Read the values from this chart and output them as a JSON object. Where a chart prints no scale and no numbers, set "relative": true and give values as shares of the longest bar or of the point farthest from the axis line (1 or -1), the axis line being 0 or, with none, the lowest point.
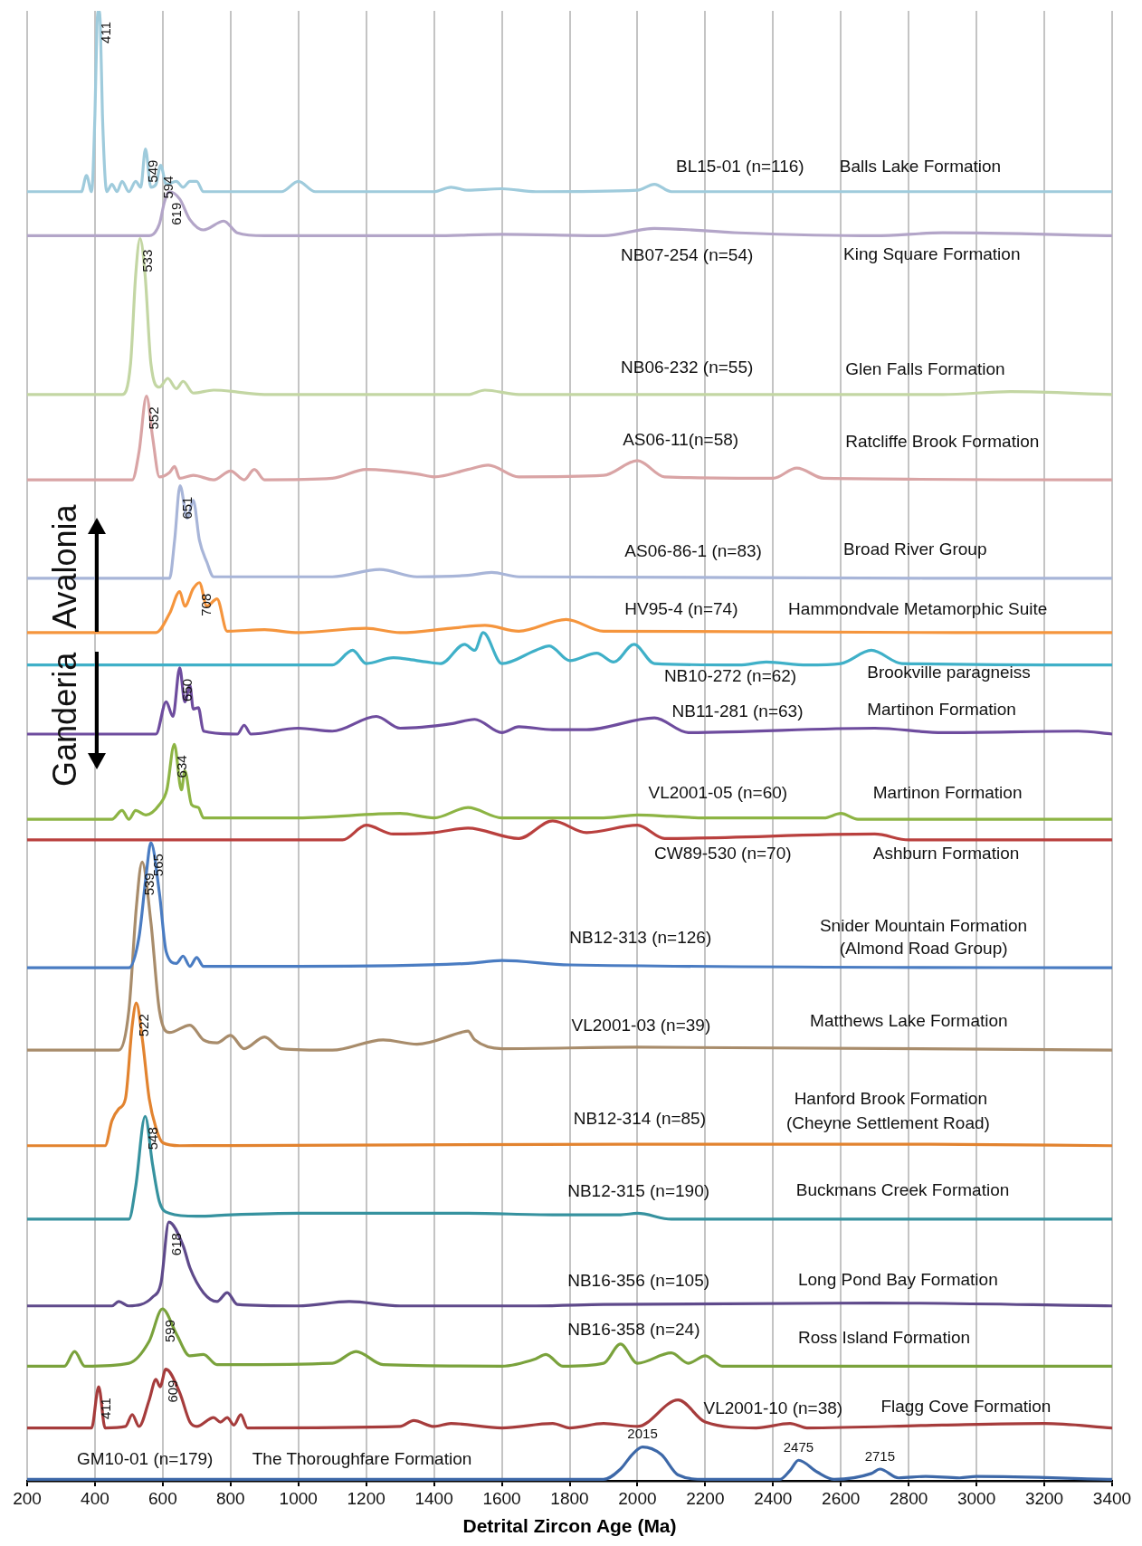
{
  "chart_data": {
    "type": "line",
    "relative": true,
    "xlabel": "Detrital Zircon Age (Ma)",
    "xlim": [
      200,
      3400
    ],
    "xticks": [
      200,
      400,
      600,
      800,
      1000,
      1200,
      1400,
      1600,
      1800,
      2000,
      2200,
      2400,
      2600,
      2800,
      3000,
      3200,
      3400
    ],
    "grid": "x",
    "series": [
      {
        "color": "#9fcbdc",
        "x": [
          200,
          360,
          375,
          390,
          400,
          406,
          411,
          416,
          422,
          435,
          450,
          465,
          480,
          500,
          520,
          535,
          549,
          565,
          580,
          594,
          610,
          640,
          660,
          680,
          700,
          720,
          950,
          1000,
          1050,
          1400,
          1450,
          1500,
          1600,
          1700,
          2000,
          2050,
          2100,
          3400
        ],
        "values": [
          0.877,
          0.877,
          0.888,
          0.877,
          0.93,
          0.99,
          1.0,
          0.99,
          0.93,
          0.877,
          0.882,
          0.877,
          0.884,
          0.877,
          0.884,
          0.88,
          0.906,
          0.88,
          0.882,
          0.895,
          0.882,
          0.884,
          0.88,
          0.884,
          0.884,
          0.877,
          0.877,
          0.884,
          0.877,
          0.877,
          0.88,
          0.878,
          0.879,
          0.877,
          0.878,
          0.882,
          0.877,
          0.877
        ]
      },
      {
        "color": "#b3a5c8",
        "x": [
          200,
          560,
          590,
          605,
          619,
          650,
          680,
          720,
          780,
          820,
          900,
          1400,
          1600,
          1900,
          2050,
          2300,
          2700,
          2900,
          3400
        ],
        "values": [
          0.847,
          0.847,
          0.855,
          0.87,
          0.877,
          0.872,
          0.858,
          0.851,
          0.857,
          0.849,
          0.847,
          0.847,
          0.848,
          0.847,
          0.852,
          0.849,
          0.847,
          0.849,
          0.847
        ]
      },
      {
        "color": "#c3d6a3",
        "x": [
          200,
          480,
          505,
          520,
          533,
          548,
          565,
          590,
          615,
          640,
          660,
          690,
          750,
          900,
          1500,
          1550,
          1650,
          2900,
          3100,
          3400
        ],
        "values": [
          0.739,
          0.739,
          0.76,
          0.82,
          0.845,
          0.82,
          0.76,
          0.744,
          0.75,
          0.743,
          0.748,
          0.74,
          0.742,
          0.739,
          0.739,
          0.742,
          0.739,
          0.739,
          0.741,
          0.739
        ]
      },
      {
        "color": "#d9a4a5",
        "x": [
          200,
          510,
          530,
          552,
          570,
          590,
          620,
          635,
          650,
          690,
          750,
          800,
          840,
          870,
          900,
          1100,
          1200,
          1350,
          1400,
          1500,
          1560,
          1650,
          1900,
          2000,
          2080,
          2400,
          2470,
          2550,
          3400
        ],
        "values": [
          0.681,
          0.681,
          0.7,
          0.738,
          0.71,
          0.683,
          0.686,
          0.69,
          0.682,
          0.684,
          0.681,
          0.687,
          0.681,
          0.688,
          0.681,
          0.682,
          0.688,
          0.685,
          0.683,
          0.688,
          0.691,
          0.683,
          0.684,
          0.694,
          0.683,
          0.682,
          0.689,
          0.682,
          0.681
        ]
      },
      {
        "color": "#a8b5d8",
        "x": [
          200,
          620,
          635,
          651,
          672,
          690,
          708,
          730,
          750,
          1100,
          1240,
          1350,
          1500,
          1570,
          1650,
          3400
        ],
        "values": [
          0.614,
          0.614,
          0.64,
          0.677,
          0.655,
          0.667,
          0.64,
          0.625,
          0.615,
          0.615,
          0.62,
          0.615,
          0.616,
          0.618,
          0.615,
          0.614
        ]
      },
      {
        "color": "#f5953d",
        "x": [
          200,
          580,
          620,
          650,
          665,
          690,
          708,
          730,
          760,
          790,
          900,
          1000,
          1200,
          1300,
          1450,
          1550,
          1650,
          1790,
          1900,
          3400
        ],
        "values": [
          0.577,
          0.577,
          0.59,
          0.605,
          0.595,
          0.607,
          0.611,
          0.595,
          0.6,
          0.578,
          0.579,
          0.577,
          0.58,
          0.577,
          0.58,
          0.582,
          0.578,
          0.586,
          0.578,
          0.577
        ]
      },
      {
        "color": "#3fb0c8",
        "x": [
          200,
          1100,
          1160,
          1200,
          1280,
          1320,
          1380,
          1420,
          1490,
          1520,
          1545,
          1600,
          1700,
          1740,
          1800,
          1880,
          1930,
          1990,
          2050,
          2300,
          2380,
          2500,
          2600,
          2690,
          2780,
          3400
        ],
        "values": [
          0.555,
          0.555,
          0.565,
          0.556,
          0.56,
          0.559,
          0.557,
          0.556,
          0.569,
          0.565,
          0.577,
          0.556,
          0.565,
          0.568,
          0.558,
          0.563,
          0.557,
          0.569,
          0.556,
          0.555,
          0.557,
          0.555,
          0.556,
          0.565,
          0.556,
          0.555
        ]
      },
      {
        "color": "#6e4c9e",
        "x": [
          200,
          580,
          610,
          630,
          650,
          665,
          680,
          690,
          705,
          720,
          820,
          840,
          860,
          1000,
          1100,
          1230,
          1300,
          1450,
          1520,
          1600,
          1650,
          1750,
          1850,
          2050,
          2150,
          2700,
          2900,
          3300,
          3400
        ],
        "values": [
          0.508,
          0.508,
          0.53,
          0.52,
          0.553,
          0.53,
          0.541,
          0.525,
          0.526,
          0.51,
          0.508,
          0.514,
          0.508,
          0.512,
          0.51,
          0.52,
          0.512,
          0.515,
          0.518,
          0.509,
          0.513,
          0.511,
          0.511,
          0.519,
          0.509,
          0.512,
          0.509,
          0.51,
          0.508
        ]
      },
      {
        "color": "#8db444",
        "x": [
          200,
          450,
          480,
          500,
          520,
          550,
          590,
          612,
          634,
          655,
          665,
          685,
          705,
          720,
          1000,
          1300,
          1400,
          1500,
          1600,
          1900,
          2000,
          2100,
          2200,
          2550,
          2600,
          2650,
          3400
        ],
        "values": [
          0.45,
          0.45,
          0.456,
          0.45,
          0.456,
          0.453,
          0.46,
          0.47,
          0.501,
          0.47,
          0.483,
          0.46,
          0.458,
          0.451,
          0.451,
          0.454,
          0.451,
          0.458,
          0.451,
          0.451,
          0.453,
          0.452,
          0.451,
          0.451,
          0.454,
          0.45,
          0.45
        ]
      },
      {
        "color": "#b9403e",
        "x": [
          200,
          1130,
          1200,
          1280,
          1400,
          1500,
          1650,
          1750,
          1850,
          2000,
          2080,
          2700,
          2800,
          3400
        ],
        "values": [
          0.436,
          0.436,
          0.446,
          0.44,
          0.441,
          0.444,
          0.437,
          0.449,
          0.441,
          0.446,
          0.437,
          0.44,
          0.436,
          0.436
        ]
      },
      {
        "color": "#4a7cc2",
        "x": [
          200,
          500,
          530,
          550,
          565,
          590,
          610,
          640,
          660,
          680,
          700,
          720,
          1000,
          1500,
          1600,
          1800,
          3400
        ],
        "values": [
          0.349,
          0.349,
          0.37,
          0.41,
          0.434,
          0.4,
          0.36,
          0.352,
          0.357,
          0.35,
          0.356,
          0.35,
          0.35,
          0.352,
          0.354,
          0.351,
          0.349
        ]
      },
      {
        "color": "#a88c6b",
        "x": [
          200,
          470,
          500,
          522,
          539,
          565,
          590,
          620,
          680,
          720,
          760,
          800,
          840,
          900,
          950,
          1100,
          1250,
          1350,
          1480,
          1500,
          1520,
          1600,
          2000,
          3400
        ],
        "values": [
          0.293,
          0.293,
          0.32,
          0.39,
          0.421,
          0.38,
          0.32,
          0.305,
          0.31,
          0.3,
          0.298,
          0.303,
          0.294,
          0.302,
          0.294,
          0.293,
          0.3,
          0.297,
          0.305,
          0.306,
          0.3,
          0.294,
          0.295,
          0.293
        ]
      },
      {
        "color": "#e2832f",
        "x": [
          200,
          430,
          450,
          470,
          490,
          510,
          522,
          540,
          560,
          580,
          600,
          650,
          2000,
          2850,
          3400
        ],
        "values": [
          0.228,
          0.228,
          0.245,
          0.253,
          0.26,
          0.31,
          0.325,
          0.3,
          0.26,
          0.24,
          0.23,
          0.228,
          0.229,
          0.229,
          0.228
        ]
      },
      {
        "color": "#36929f",
        "x": [
          200,
          500,
          520,
          548,
          570,
          590,
          620,
          700,
          800,
          1000,
          1500,
          1750,
          1950,
          2000,
          2100,
          3400
        ],
        "values": [
          0.178,
          0.178,
          0.2,
          0.248,
          0.215,
          0.19,
          0.182,
          0.18,
          0.181,
          0.182,
          0.182,
          0.181,
          0.181,
          0.182,
          0.178,
          0.178
        ]
      },
      {
        "color": "#5f4a8b",
        "x": [
          200,
          450,
          470,
          500,
          570,
          595,
          618,
          660,
          680,
          720,
          760,
          790,
          820,
          1000,
          1150,
          1300,
          1700,
          1900,
          2700,
          3400
        ],
        "values": [
          0.119,
          0.119,
          0.122,
          0.119,
          0.125,
          0.135,
          0.176,
          0.16,
          0.145,
          0.128,
          0.122,
          0.128,
          0.12,
          0.119,
          0.122,
          0.119,
          0.119,
          0.12,
          0.121,
          0.119
        ]
      },
      {
        "color": "#7aa23c",
        "x": [
          200,
          310,
          340,
          370,
          500,
          560,
          599,
          640,
          680,
          720,
          760,
          1100,
          1170,
          1250,
          1600,
          1700,
          1730,
          1780,
          1900,
          1950,
          2000,
          2100,
          2150,
          2200,
          2250,
          3400
        ],
        "values": [
          0.078,
          0.078,
          0.088,
          0.078,
          0.08,
          0.095,
          0.117,
          0.1,
          0.085,
          0.086,
          0.079,
          0.08,
          0.088,
          0.079,
          0.078,
          0.083,
          0.086,
          0.078,
          0.08,
          0.093,
          0.08,
          0.087,
          0.08,
          0.085,
          0.078,
          0.078
        ]
      },
      {
        "color": "#a63c3c",
        "x": [
          200,
          390,
          411,
          430,
          490,
          510,
          530,
          560,
          580,
          592,
          609,
          650,
          680,
          700,
          750,
          770,
          790,
          810,
          830,
          850,
          1300,
          1340,
          1400,
          1450,
          1600,
          1750,
          1800,
          1900,
          2000,
          2120,
          2200,
          2350,
          2450,
          2500,
          2900,
          3200,
          3400
        ],
        "values": [
          0.036,
          0.036,
          0.064,
          0.036,
          0.037,
          0.045,
          0.037,
          0.055,
          0.069,
          0.064,
          0.076,
          0.06,
          0.04,
          0.037,
          0.043,
          0.04,
          0.043,
          0.038,
          0.045,
          0.036,
          0.037,
          0.041,
          0.037,
          0.039,
          0.036,
          0.039,
          0.036,
          0.039,
          0.037,
          0.055,
          0.04,
          0.036,
          0.039,
          0.036,
          0.038,
          0.039,
          0.036
        ]
      },
      {
        "color": "#3d68a8",
        "x": [
          200,
          1900,
          1950,
          1985,
          2015,
          2070,
          2120,
          2200,
          2420,
          2450,
          2475,
          2530,
          2580,
          2690,
          2715,
          2770,
          2850,
          2950,
          3000,
          3400
        ],
        "values": [
          0.001,
          0.001,
          0.008,
          0.018,
          0.023,
          0.018,
          0.004,
          0.001,
          0.001,
          0.007,
          0.014,
          0.006,
          0.001,
          0.005,
          0.008,
          0.002,
          0.003,
          0.002,
          0.003,
          0.001
        ]
      }
    ],
    "annotations": [
      "Avalonia",
      "Ganderia",
      "BL15-01 (n=116)",
      "Balls Lake Formation",
      "NB07-254 (n=54)",
      "King Square Formation",
      "NB06-232 (n=55)",
      "Glen Falls Formation",
      "AS06-11(n=58)",
      "Ratcliffe Brook Formation",
      "AS06-86-1 (n=83)",
      "Broad River Group",
      "HV95-4 (n=74)",
      "Hammondvale Metamorphic Suite",
      "NB10-272 (n=62)",
      "Brookville paragneiss",
      "NB11-281 (n=63)",
      "Martinon Formation",
      "VL2001-05 (n=60)",
      "Martinon Formation",
      "CW89-530 (n=70)",
      "Ashburn Formation",
      "NB12-313 (n=126)",
      "Snider Mountain Formation",
      "(Almond Road Group)",
      "VL2001-03 (n=39)",
      "Matthews Lake Formation",
      "NB12-314 (n=85)",
      "Hanford Brook Formation",
      "(Cheyne Settlement Road)",
      "NB12-315 (n=190)",
      "Buckmans Creek Formation",
      "NB16-356 (n=105)",
      "Long Pond Bay Formation",
      "NB16-358 (n=24)",
      "Ross Island Formation",
      "VL2001-10 (n=38)",
      "Flagg Cove Formation",
      "GM10-01 (n=179)",
      "The Thoroughfare Formation",
      {
        "text": "411",
        "x": 411,
        "y": 1.0
      },
      {
        "text": "549",
        "x": 549,
        "y": 0.906
      },
      {
        "text": "594",
        "x": 594,
        "y": 0.895
      },
      {
        "text": "619",
        "x": 619,
        "y": 0.877
      },
      {
        "text": "533",
        "x": 533,
        "y": 0.845
      },
      {
        "text": "552",
        "x": 552,
        "y": 0.738
      },
      {
        "text": "651",
        "x": 651,
        "y": 0.677
      },
      {
        "text": "708",
        "x": 708,
        "y": 0.611
      },
      {
        "text": "650",
        "x": 650,
        "y": 0.553
      },
      {
        "text": "634",
        "x": 634,
        "y": 0.501
      },
      {
        "text": "565",
        "x": 565,
        "y": 0.434
      },
      {
        "text": "539",
        "x": 539,
        "y": 0.421
      },
      {
        "text": "522",
        "x": 522,
        "y": 0.325
      },
      {
        "text": "548",
        "x": 548,
        "y": 0.248
      },
      {
        "text": "618",
        "x": 618,
        "y": 0.176
      },
      {
        "text": "599",
        "x": 599,
        "y": 0.117
      },
      {
        "text": "411",
        "x": 411,
        "y": 0.064
      },
      {
        "text": "609",
        "x": 609,
        "y": 0.076
      },
      {
        "text": "2015",
        "x": 2015,
        "y": 0.023
      },
      {
        "text": "2475",
        "x": 2475,
        "y": 0.014
      },
      {
        "text": "2715",
        "x": 2715,
        "y": 0.008
      }
    ]
  }
}
